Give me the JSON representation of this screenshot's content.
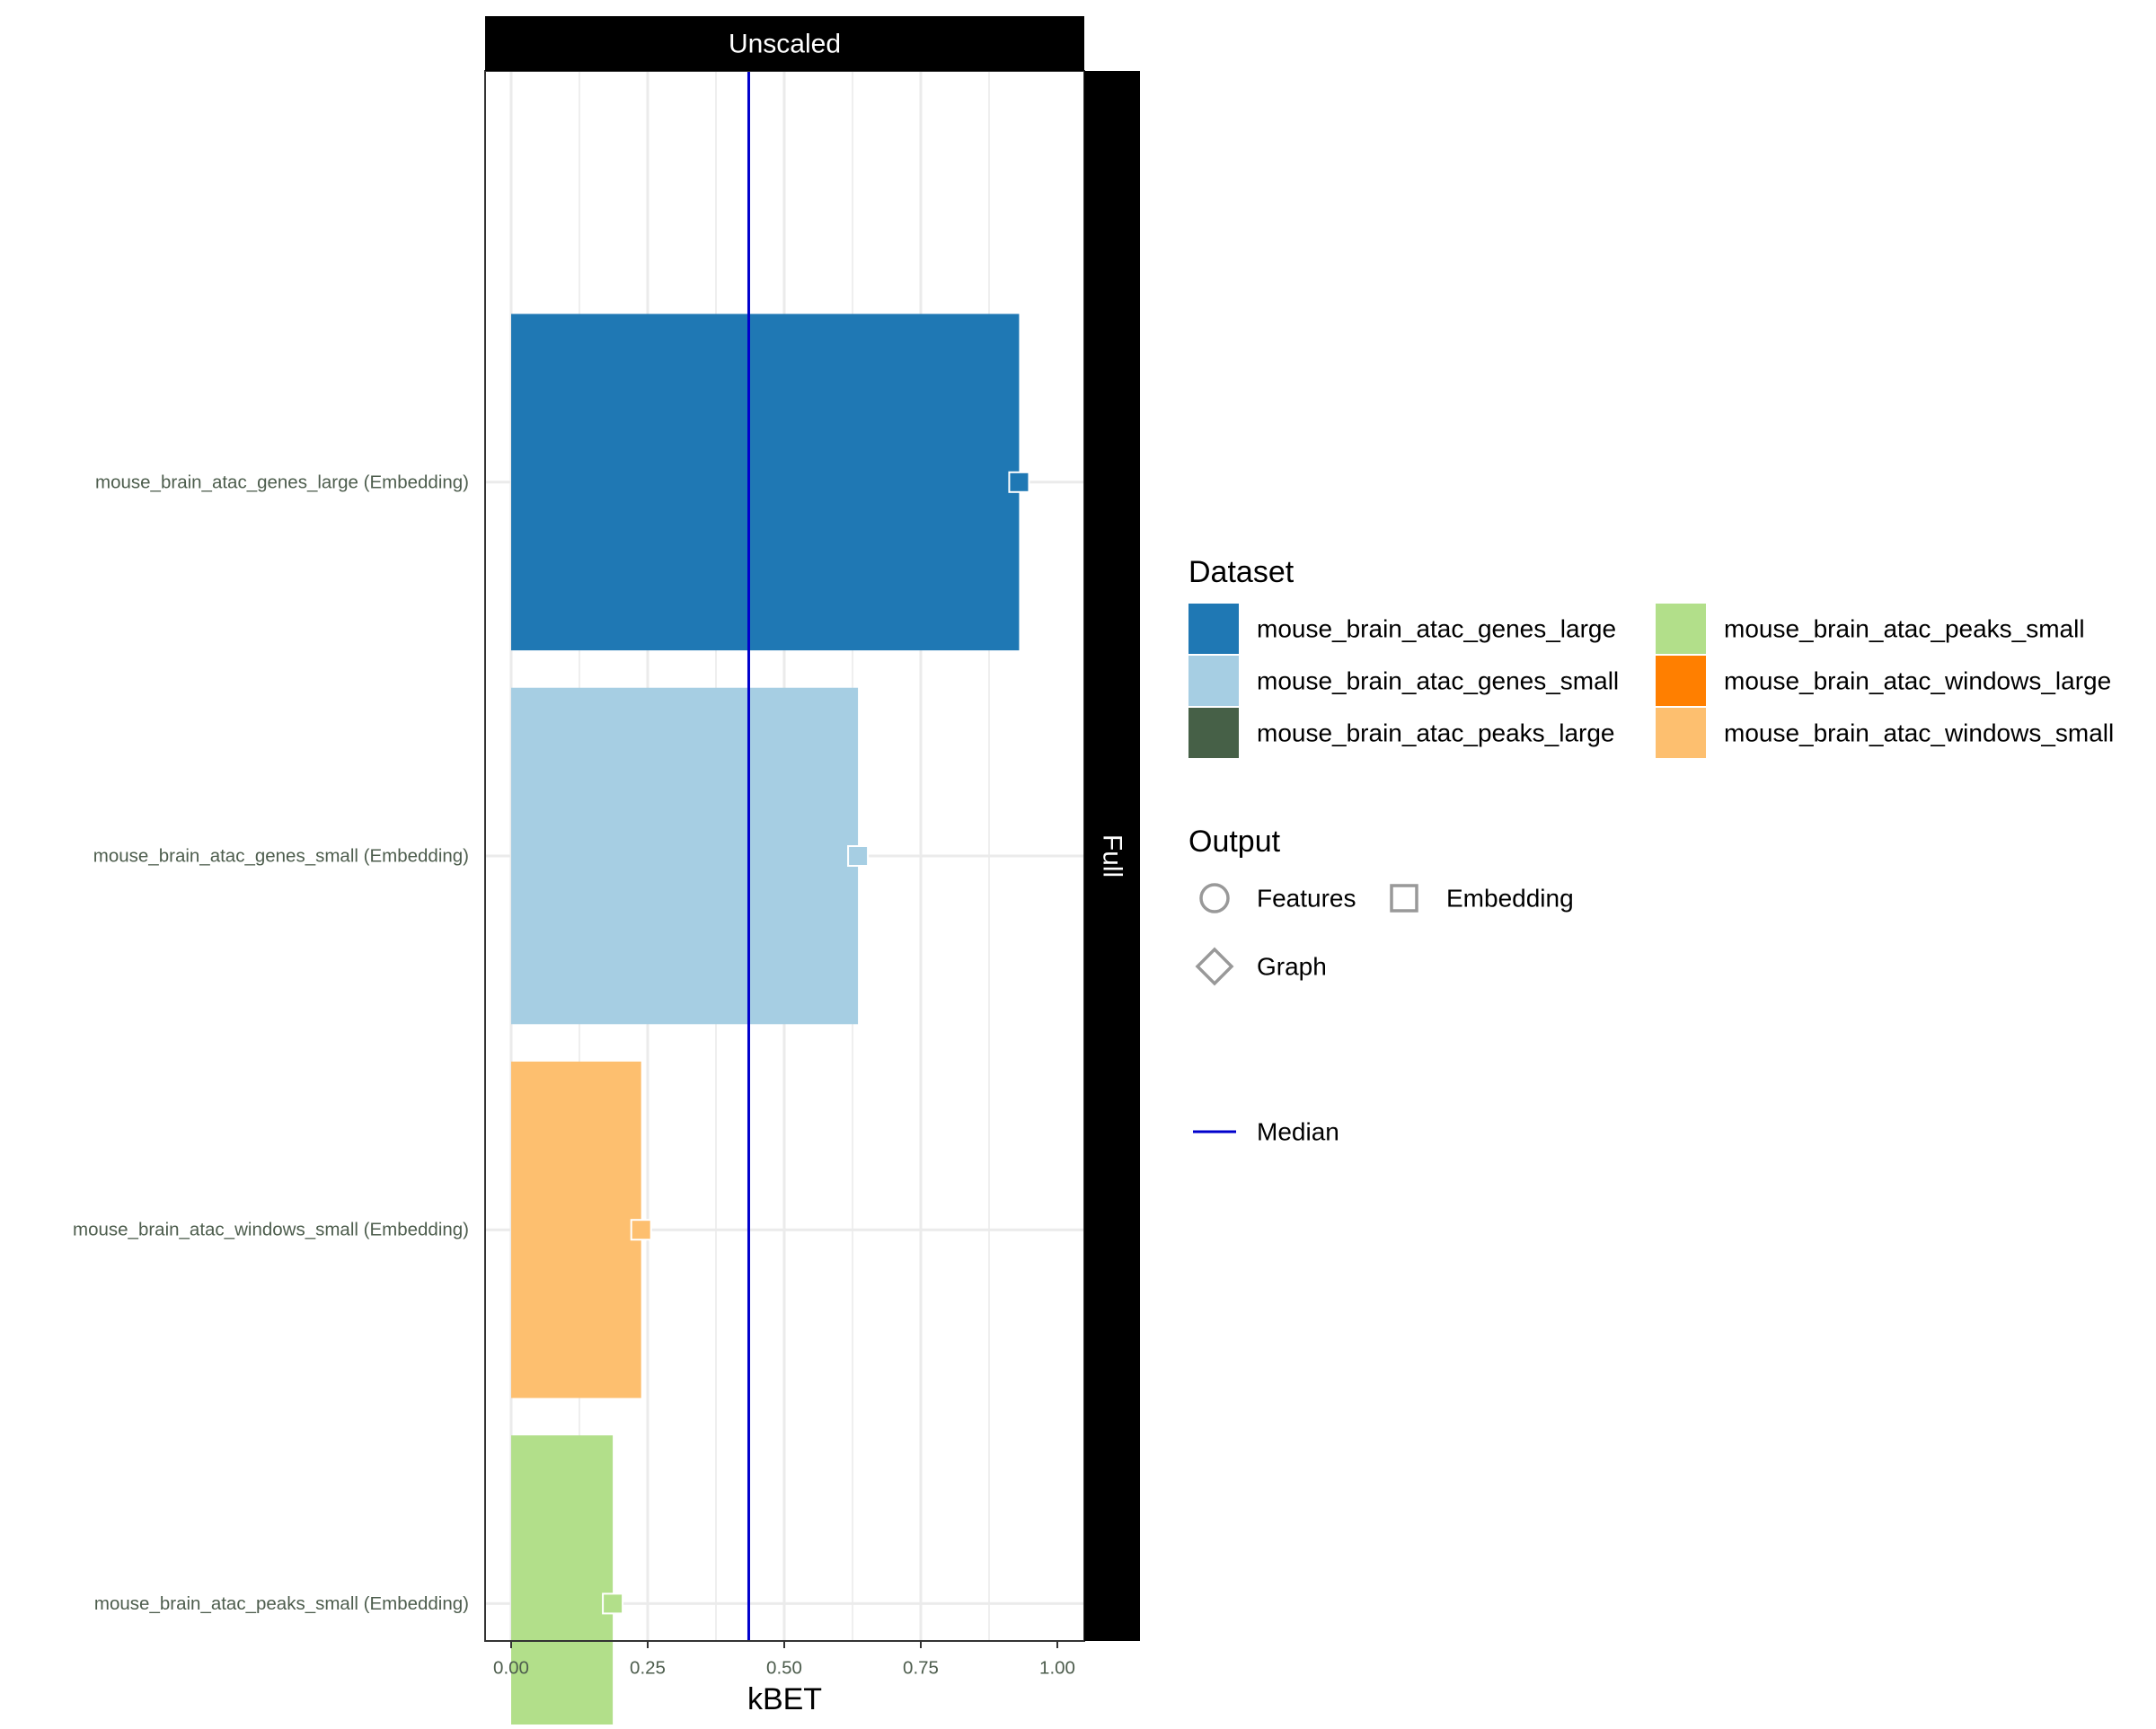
{
  "chart_data": {
    "type": "bar",
    "orientation": "horizontal",
    "facet_top_label": "Unscaled",
    "facet_right_label": "Full",
    "xlabel": "kBET",
    "ylabel": "",
    "xlim": [
      0,
      1.05
    ],
    "x_ticks": [
      0,
      0.25,
      0.5,
      0.75,
      1.0
    ],
    "x_tick_labels": [
      "0.00",
      "0.25",
      "0.50",
      "0.75",
      "1.00"
    ],
    "grid": true,
    "median": 0.435,
    "bars": [
      {
        "label": "mouse_brain_atac_genes_large (Embedding)",
        "dataset": "mouse_brain_atac_genes_large",
        "output": "Embedding",
        "value": 0.93
      },
      {
        "label": "mouse_brain_atac_genes_small (Embedding)",
        "dataset": "mouse_brain_atac_genes_small",
        "output": "Embedding",
        "value": 0.635
      },
      {
        "label": "mouse_brain_atac_windows_small (Embedding)",
        "dataset": "mouse_brain_atac_windows_small",
        "output": "Embedding",
        "value": 0.238
      },
      {
        "label": "mouse_brain_atac_peaks_small (Embedding)",
        "dataset": "mouse_brain_atac_peaks_small",
        "output": "Embedding",
        "value": 0.186
      }
    ],
    "legend": {
      "placement": "right",
      "dataset_title": "Dataset",
      "datasets": [
        {
          "name": "mouse_brain_atac_genes_large",
          "color": "#1F78B4"
        },
        {
          "name": "mouse_brain_atac_genes_small",
          "color": "#A6CEE3"
        },
        {
          "name": "mouse_brain_atac_peaks_large",
          "color": "#466047"
        },
        {
          "name": "mouse_brain_atac_peaks_small",
          "color": "#B2DF8A"
        },
        {
          "name": "mouse_brain_atac_windows_large",
          "color": "#FF7F00"
        },
        {
          "name": "mouse_brain_atac_windows_small",
          "color": "#FDBF6F"
        }
      ],
      "output_title": "Output",
      "outputs": [
        {
          "name": "Features",
          "shape": "circle-icon"
        },
        {
          "name": "Embedding",
          "shape": "square-icon"
        },
        {
          "name": "Graph",
          "shape": "diamond-icon"
        }
      ],
      "median_label": "Median",
      "median_color": "#0000CC"
    },
    "colors": {
      "tick_label": "#4D5D4D",
      "grid": "#EBEBEB",
      "strip": "#000000",
      "strip_text": "#FFFFFF",
      "legend_shape": "#999999"
    }
  }
}
